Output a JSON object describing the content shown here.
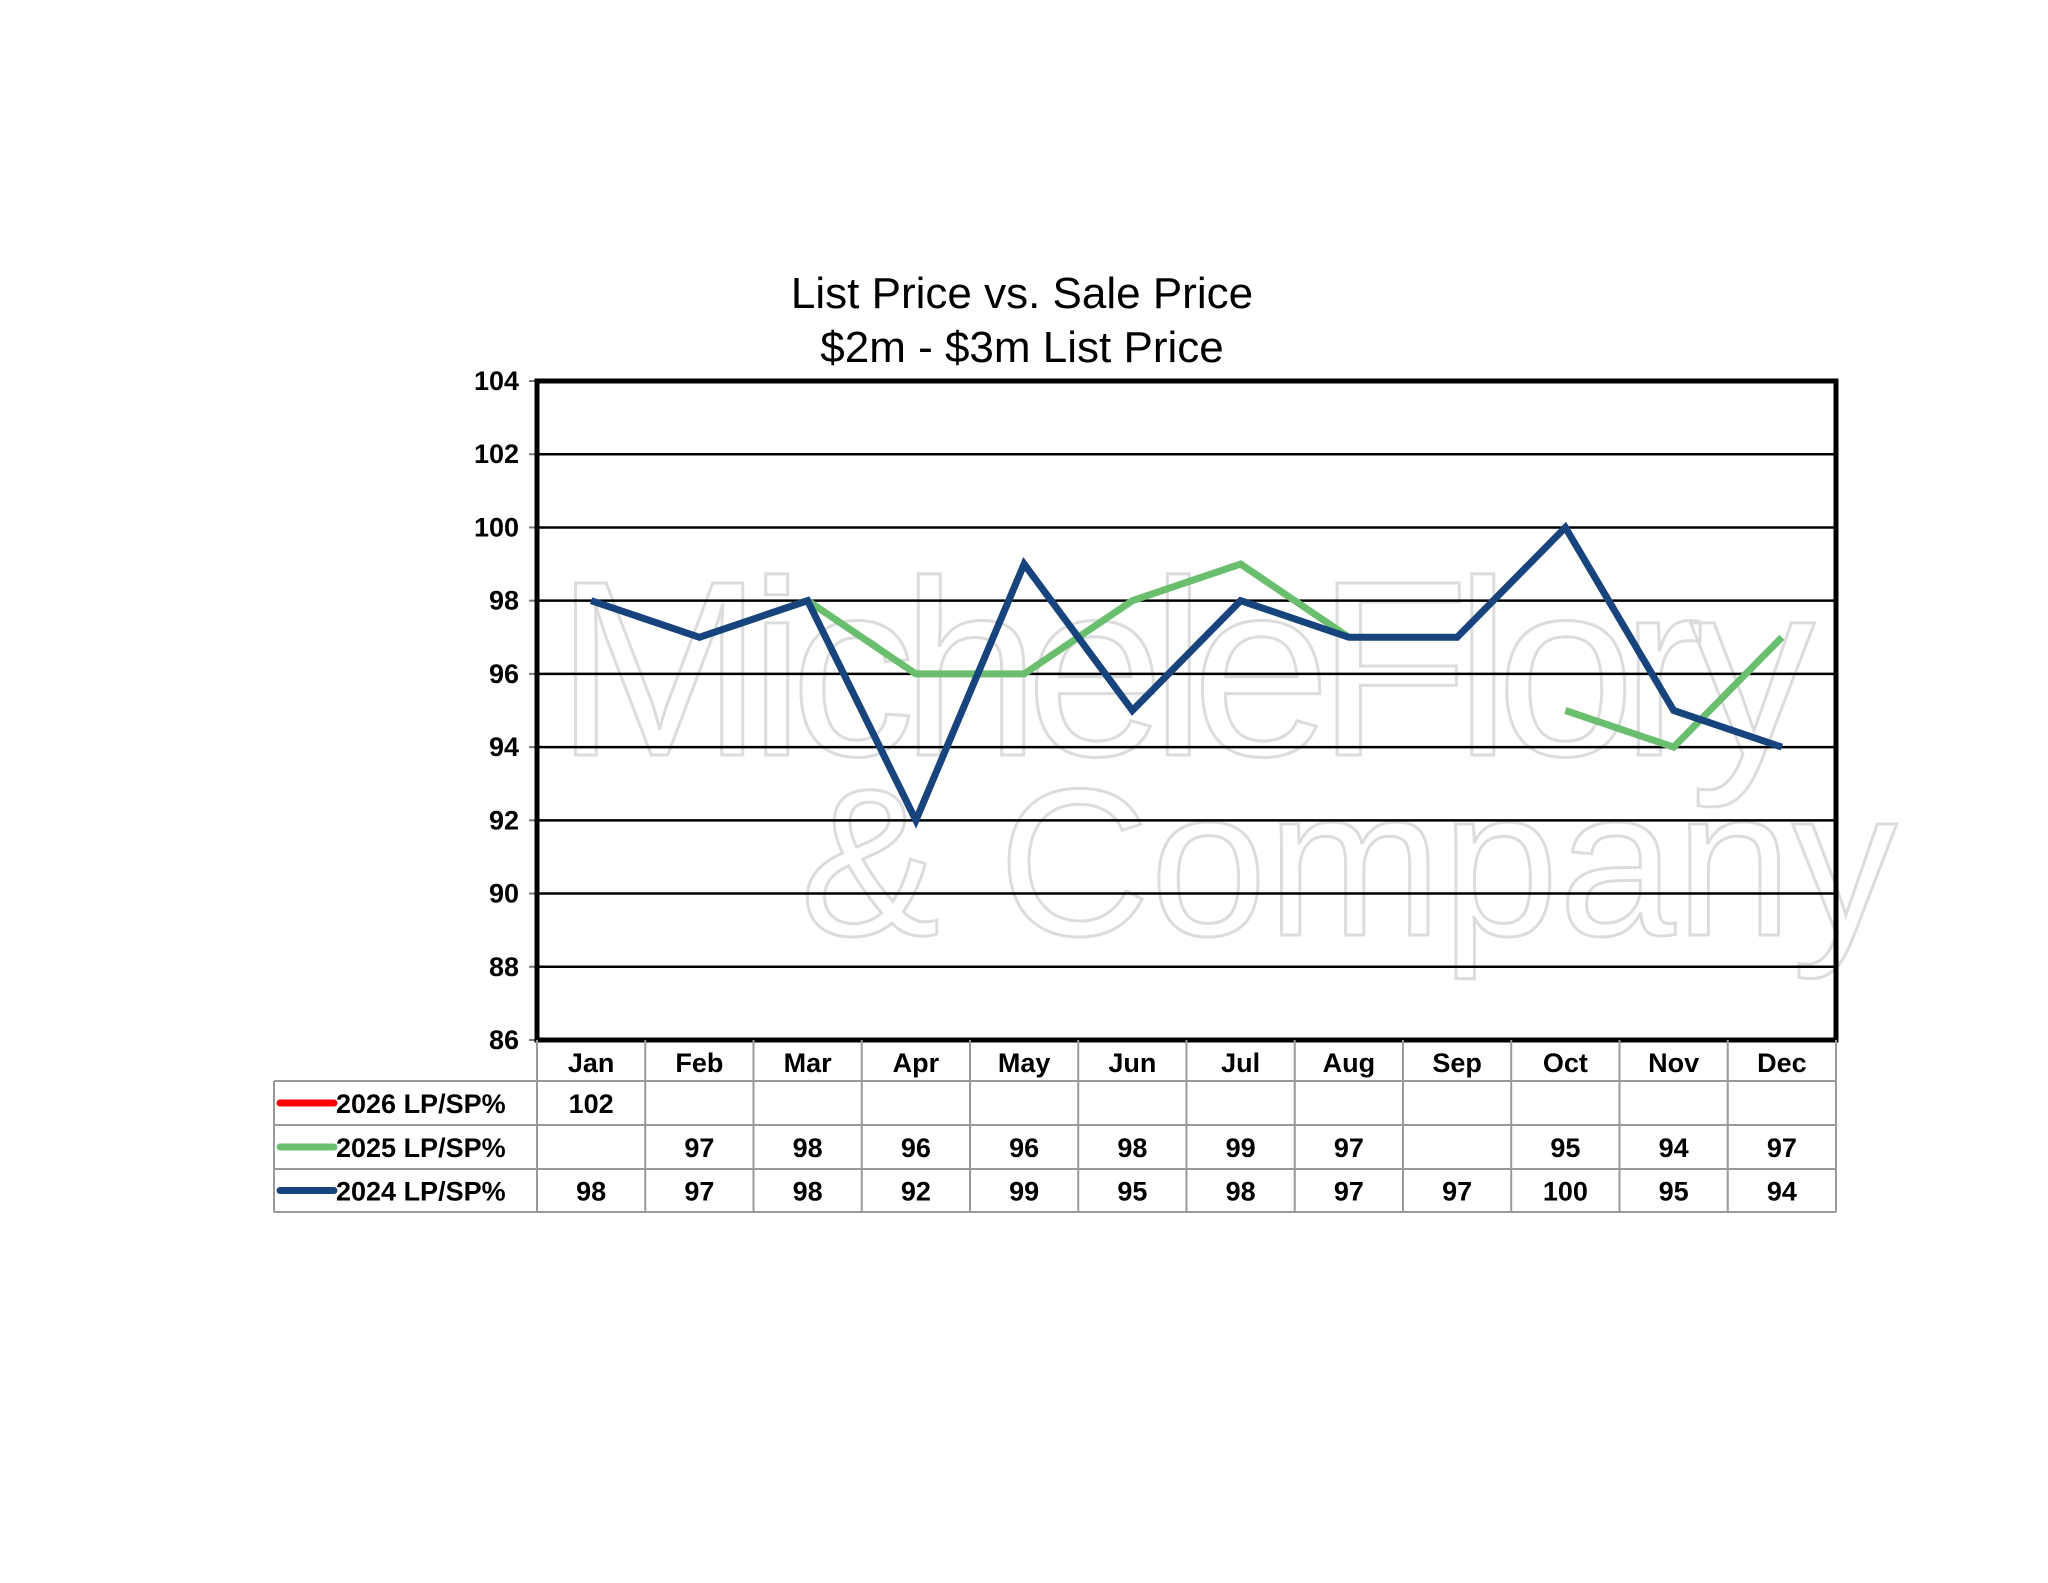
{
  "chart_data": {
    "type": "line",
    "title": "List Price vs. Sale Price",
    "subtitle": "$2m - $3m List Price",
    "xlabel": "",
    "ylabel": "",
    "categories": [
      "Jan",
      "Feb",
      "Mar",
      "Apr",
      "May",
      "Jun",
      "Jul",
      "Aug",
      "Sep",
      "Oct",
      "Nov",
      "Dec"
    ],
    "ylim": [
      86,
      104
    ],
    "yticks": [
      86,
      88,
      90,
      92,
      94,
      96,
      98,
      100,
      102,
      104
    ],
    "grid": true,
    "legend_placement": "data-table-bottom",
    "series": [
      {
        "name": "2026 LP/SP%",
        "color": "#ff0000",
        "values": [
          102,
          null,
          null,
          null,
          null,
          null,
          null,
          null,
          null,
          null,
          null,
          null
        ]
      },
      {
        "name": "2025 LP/SP%",
        "color": "#6abf6e",
        "values": [
          null,
          97,
          98,
          96,
          96,
          98,
          99,
          97,
          null,
          95,
          94,
          97
        ]
      },
      {
        "name": "2024 LP/SP%",
        "color": "#17447c",
        "values": [
          98,
          97,
          98,
          92,
          99,
          95,
          98,
          97,
          97,
          100,
          95,
          94
        ]
      }
    ]
  },
  "watermark": {
    "line1": "MicheleFlory",
    "line2": "& Company"
  }
}
